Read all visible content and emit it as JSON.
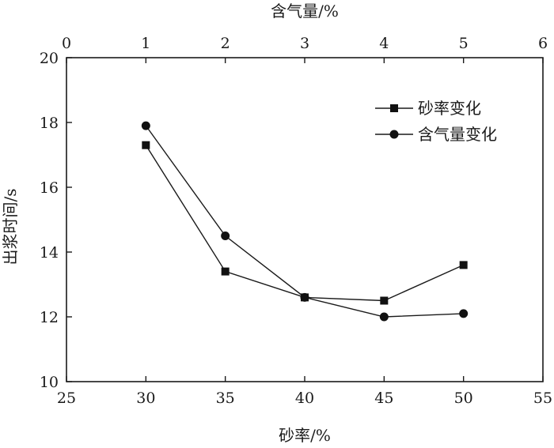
{
  "chart_data": {
    "type": "line",
    "xlabel": "砂率/%",
    "x2label": "含气量/%",
    "ylabel": "出浆时间/s",
    "xlim": [
      25,
      55
    ],
    "x2lim": [
      0,
      6
    ],
    "ylim": [
      10,
      20
    ],
    "x_ticks": [
      25,
      30,
      35,
      40,
      45,
      50,
      55
    ],
    "x2_ticks": [
      0,
      1,
      2,
      3,
      4,
      5,
      6
    ],
    "y_ticks": [
      10,
      12,
      14,
      16,
      18,
      20
    ],
    "grid": false,
    "legend_position": "top-right",
    "series": [
      {
        "name": "砂率变化",
        "axis": "bottom",
        "marker": "square",
        "x": [
          30,
          35,
          40,
          45,
          50
        ],
        "y": [
          17.3,
          13.4,
          12.6,
          12.5,
          13.6
        ]
      },
      {
        "name": "含气量变化",
        "axis": "top",
        "marker": "circle",
        "x": [
          1,
          2,
          3,
          4,
          5
        ],
        "y": [
          17.9,
          14.5,
          12.6,
          12.0,
          12.1
        ]
      }
    ]
  }
}
